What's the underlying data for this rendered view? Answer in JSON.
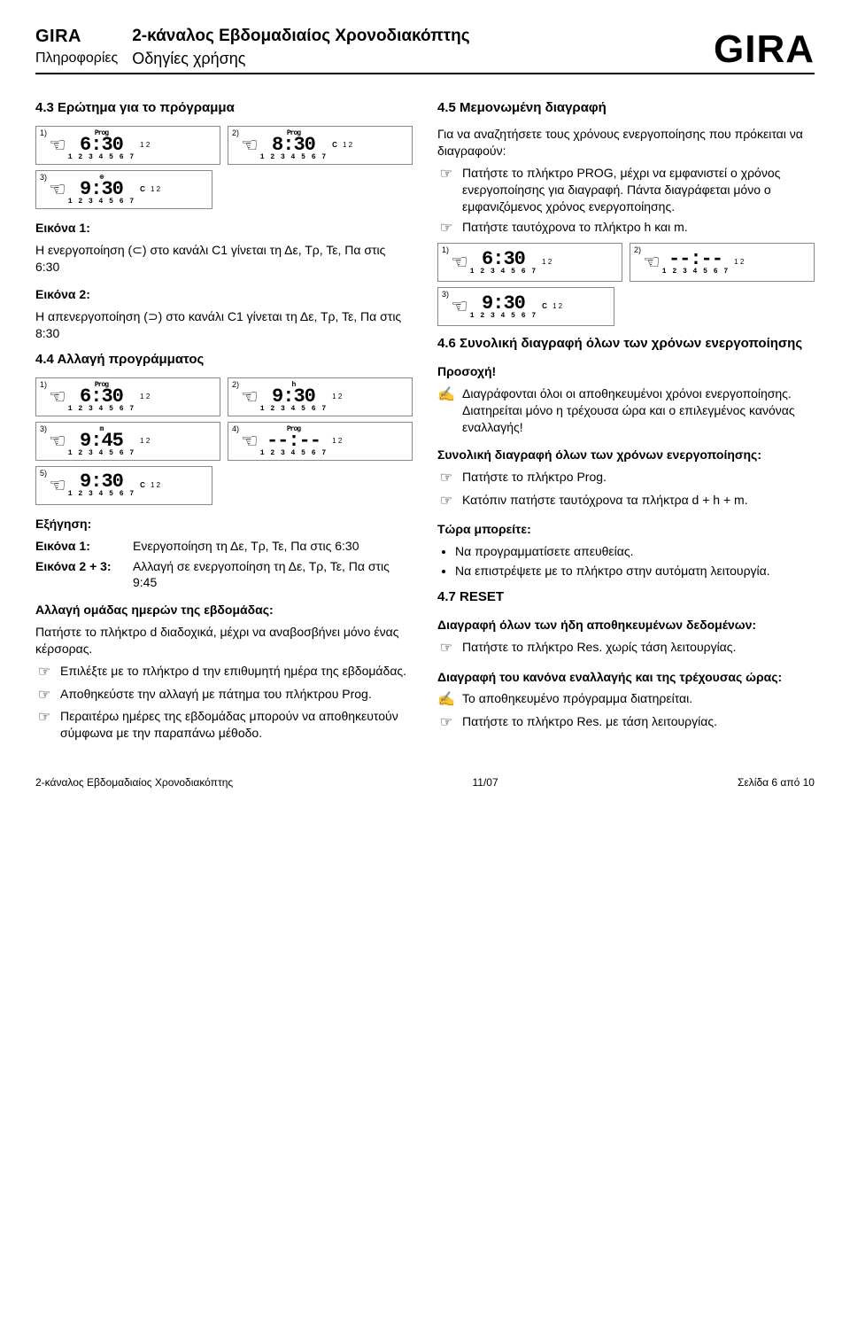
{
  "header": {
    "brand": "GIRA",
    "brand_sub": "Πληροφορίες",
    "title": "2-κάναλος Εβδομαδιαίος Χρονοδιακόπτης",
    "subtitle": "Οδηγίες χρήσης",
    "brand_big": "GIRA"
  },
  "left": {
    "s43_h": "4.3  Ερώτημα για το πρόγραμμα",
    "fig_labels": {
      "n1": "1)",
      "n2": "2)",
      "n3": "3)",
      "prog": "Prog"
    },
    "lcd": {
      "d1": "6:30",
      "d2": "8:30",
      "d3": "9:30",
      "days": "1 2 3 4 5 6 7",
      "c12": "1\n2"
    },
    "img1_h": "Εικόνα 1:",
    "img1_p": "Η ενεργοποίηση (⊂) στο κανάλι C1 γίνεται τη Δε, Τρ, Τε, Πα στις 6:30",
    "img2_h": "Εικόνα 2:",
    "img2_p": "Η απενεργοποίηση (⊃) στο κανάλι C1 γίνεται τη Δε, Τρ, Τε, Πα στις 8:30",
    "s44_h": "4.4  Αλλαγή προγράμματος",
    "lcd2": {
      "d1": "6:30",
      "d2": "9:30",
      "d3": "9:45",
      "d4": "--:--",
      "d5": "9:30"
    },
    "fig2_labels": {
      "n1": "1)",
      "n2": "2)",
      "n3": "3)",
      "n4": "4)",
      "n5": "5)",
      "prog": "Prog",
      "h": "h",
      "m": "m"
    },
    "expl_h": "Εξήγηση:",
    "expl_k1": "Εικόνα 1:",
    "expl_v1": "Ενεργοποίηση τη Δε, Τρ, Τε, Πα στις 6:30",
    "expl_k2": "Εικόνα 2 + 3:",
    "expl_v2": "Αλλαγή σε ενεργοποίηση τη Δε, Τρ, Τε, Πα στις 9:45",
    "grp_h": "Αλλαγή ομάδας ημερών της εβδομάδας:",
    "grp_p": "Πατήστε το πλήκτρο d διαδοχικά, μέχρι να αναβοσβήνει μόνο ένας κέρσορας.",
    "grp_b1": "Επιλέξτε με το πλήκτρο d την επιθυμητή ημέρα της εβδομάδας.",
    "grp_b2": "Αποθηκεύστε την αλλαγή με πάτημα του πλήκτρου Prog.",
    "grp_b3": "Περαιτέρω ημέρες της εβδομάδας μπορούν να αποθηκευτούν σύμφωνα με την παραπάνω μέθοδο."
  },
  "right": {
    "s45_h": "4.5  Μεμονωμένη διαγραφή",
    "s45_p1": "Για να αναζητήσετε τους χρόνους ενεργοποίησης που πρόκειται να διαγραφούν:",
    "s45_b1": "Πατήστε το πλήκτρο PROG, μέχρι να εμφανιστεί ο χρόνος ενεργοποίησης για διαγραφή. Πάντα διαγράφεται μόνο ο εμφανιζόμενος χρόνος ενεργοποίησης.",
    "s45_b2": "Πατήστε ταυτόχρονα το πλήκτρο h και m.",
    "lcdr": {
      "d1": "6:30",
      "d2": "--:--",
      "d3": "9:30"
    },
    "figr_labels": {
      "n1": "1)",
      "n2": "2)",
      "n3": "3)"
    },
    "s46_h": "4.6  Συνολική διαγραφή όλων των χρόνων ενεργοποίησης",
    "s46_warn_h": "Προσοχή!",
    "s46_warn_p": "Διαγράφονται όλοι οι αποθηκευμένοι χρόνοι ενεργοποίησης.\nΔιατηρείται μόνο η τρέχουσα ώρα και ο επιλεγμένος κανόνας εναλλαγής!",
    "s46_sub": "Συνολική διαγραφή όλων των χρόνων ενεργοποίησης:",
    "s46_b1": "Πατήστε το πλήκτρο Prog.",
    "s46_b2": "Κατόπιν πατήστε ταυτόχρονα τα πλήκτρα d + h + m.",
    "s46_now_h": "Τώρα μπορείτε:",
    "s46_li1": "Να προγραμματίσετε απευθείας.",
    "s46_li2": "Να επιστρέψετε με το πλήκτρο στην αυτόματη λειτουργία.",
    "s47_h": "4.7  RESET",
    "s47_p1_h": "Διαγραφή όλων των ήδη αποθηκευμένων δεδομένων:",
    "s47_b1": "Πατήστε το πλήκτρο Res. χωρίς τάση λειτουργίας.",
    "s47_p2_h": "Διαγραφή του κανόνα εναλλαγής και της τρέχουσας ώρας:",
    "s47_b2": "Το αποθηκευμένο πρόγραμμα διατηρείται.",
    "s47_b3": "Πατήστε το πλήκτρο Res. με τάση λειτουργίας."
  },
  "footer": {
    "left": "2-κάναλος Εβδομαδιαίος Χρονοδιακόπτης",
    "center": "11/07",
    "right": "Σελίδα 6 από 10"
  },
  "icons": {
    "hand": "☞",
    "note": "✍"
  }
}
